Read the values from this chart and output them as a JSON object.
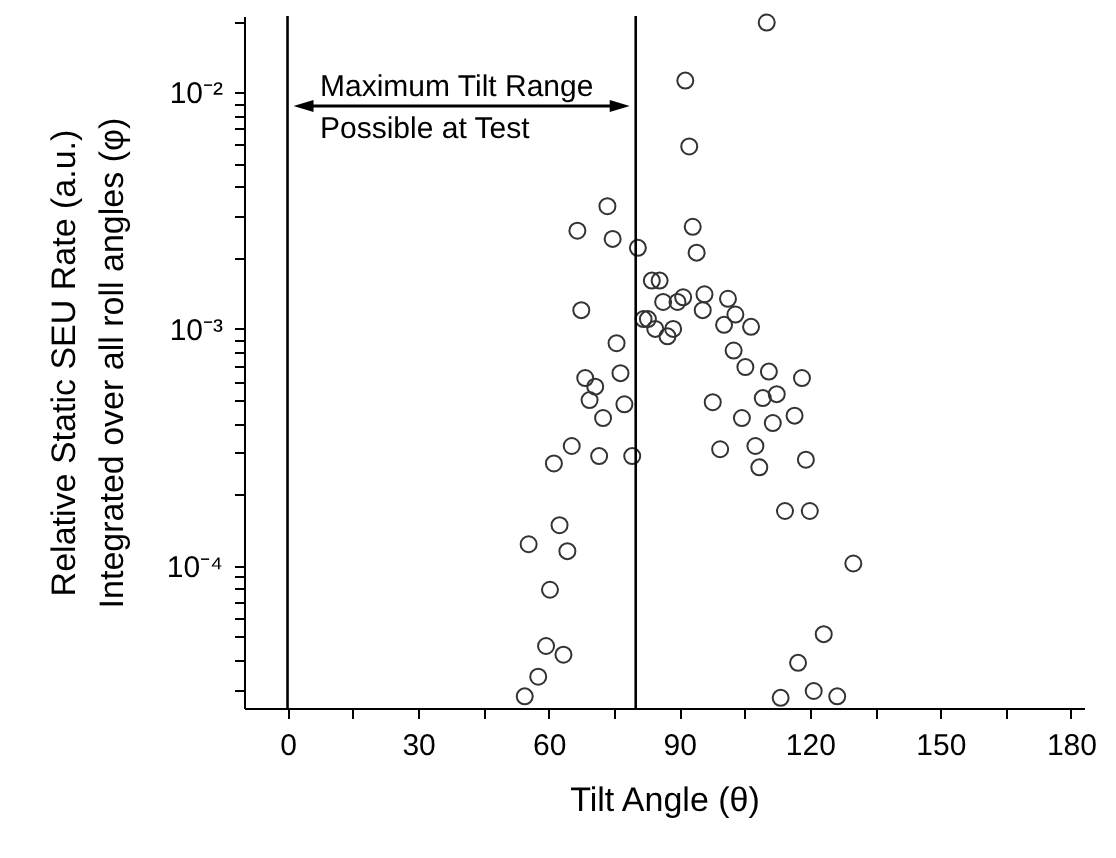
{
  "chart_data": {
    "type": "scatter",
    "xlabel": "Tilt Angle (θ)",
    "ylabel": "Relative Static SEU Rate (a.u.)\nIntegrated over all roll angles (φ)",
    "log": "y",
    "marker": "circle",
    "grid": false,
    "xlim": [
      -10,
      183
    ],
    "xticks": [
      0,
      {
        "value": 15,
        "label": null
      },
      30,
      {
        "value": 45,
        "label": null
      },
      60,
      {
        "value": 75,
        "label": null
      },
      90,
      {
        "value": 105,
        "label": null
      },
      120,
      {
        "value": 135,
        "label": null
      },
      150,
      {
        "value": 165,
        "label": null
      },
      180
    ],
    "ylim": [
      2.5e-05,
      0.021
    ],
    "yticks": [
      {
        "value": 3e-05,
        "label": null
      },
      {
        "value": 4e-05,
        "label": null
      },
      {
        "value": 5e-05,
        "label": null
      },
      {
        "value": 6e-05,
        "label": null
      },
      {
        "value": 7e-05,
        "label": null
      },
      {
        "value": 8e-05,
        "label": null
      },
      {
        "value": 9e-05,
        "label": null
      },
      {
        "value": 0.0001,
        "label": "10⁻⁴"
      },
      {
        "value": 0.0002,
        "label": null
      },
      {
        "value": 0.0003,
        "label": null
      },
      {
        "value": 0.0004,
        "label": null
      },
      {
        "value": 0.0005,
        "label": null
      },
      {
        "value": 0.0006,
        "label": null
      },
      {
        "value": 0.0007,
        "label": null
      },
      {
        "value": 0.0008,
        "label": null
      },
      {
        "value": 0.0009,
        "label": null
      },
      {
        "value": 0.001,
        "label": "10⁻³"
      },
      {
        "value": 0.002,
        "label": null
      },
      {
        "value": 0.003,
        "label": null
      },
      {
        "value": 0.004,
        "label": null
      },
      {
        "value": 0.005,
        "label": null
      },
      {
        "value": 0.006,
        "label": null
      },
      {
        "value": 0.007,
        "label": null
      },
      {
        "value": 0.008,
        "label": null
      },
      {
        "value": 0.009,
        "label": null
      },
      {
        "value": 0.01,
        "label": "10⁻²"
      },
      {
        "value": 0.02,
        "label": null
      }
    ],
    "ref_lines": [
      {
        "axis": "x",
        "value": 0
      },
      {
        "axis": "x",
        "value": 80
      }
    ],
    "annotations": [
      "Maximum Tilt Range\nPossible at Test"
    ],
    "series": [
      {
        "color": "#333333",
        "x": [
          110.1,
          91.4,
          92.3,
          93.1,
          94.0,
          73.5,
          66.6,
          74.7,
          80.5,
          83.7,
          85.5,
          86.3,
          67.5,
          81.8,
          82.8,
          84.5,
          75.6,
          68.4,
          70.7,
          69.4,
          72.5,
          76.5,
          77.4,
          65.3,
          61.2,
          71.6,
          79.2,
          62.5,
          55.4,
          64.3,
          60.3,
          59.4,
          63.4,
          57.6,
          54.5,
          89.6,
          90.9,
          95.4,
          95.8,
          101.2,
          100.3,
          102.9,
          106.5,
          87.3,
          88.6,
          102.5,
          105.2,
          110.6,
          118.2,
          97.7,
          109.2,
          112.4,
          104.4,
          111.5,
          116.5,
          99.4,
          107.5,
          108.4,
          119.1,
          114.3,
          120.0,
          130.0,
          123.2,
          117.3,
          120.9,
          126.3,
          113.3
        ],
        "values": [
          0.0197,
          0.0112,
          0.0059,
          0.0027,
          0.0021,
          0.0033,
          0.0026,
          0.0024,
          0.0022,
          0.0016,
          0.0016,
          0.0013,
          0.0012,
          0.0011,
          0.0011,
          0.001,
          0.00087,
          0.00062,
          0.00057,
          0.0005,
          0.00042,
          0.00065,
          0.00048,
          0.00032,
          0.00027,
          0.00029,
          0.00029,
          0.000148,
          0.000123,
          0.000115,
          7.9e-05,
          4.57e-05,
          4.2e-05,
          3.39e-05,
          2.8e-05,
          0.0013,
          0.00136,
          0.0012,
          0.0014,
          0.00134,
          0.00104,
          0.00115,
          0.00102,
          0.00093,
          0.001,
          0.00081,
          0.00069,
          0.00066,
          0.00062,
          0.00049,
          0.00051,
          0.00053,
          0.00042,
          0.0004,
          0.00043,
          0.00031,
          0.00032,
          0.00026,
          0.00028,
          0.00017,
          0.00017,
          0.000102,
          5.13e-05,
          3.88e-05,
          2.95e-05,
          2.8e-05,
          2.76e-05
        ]
      }
    ]
  }
}
